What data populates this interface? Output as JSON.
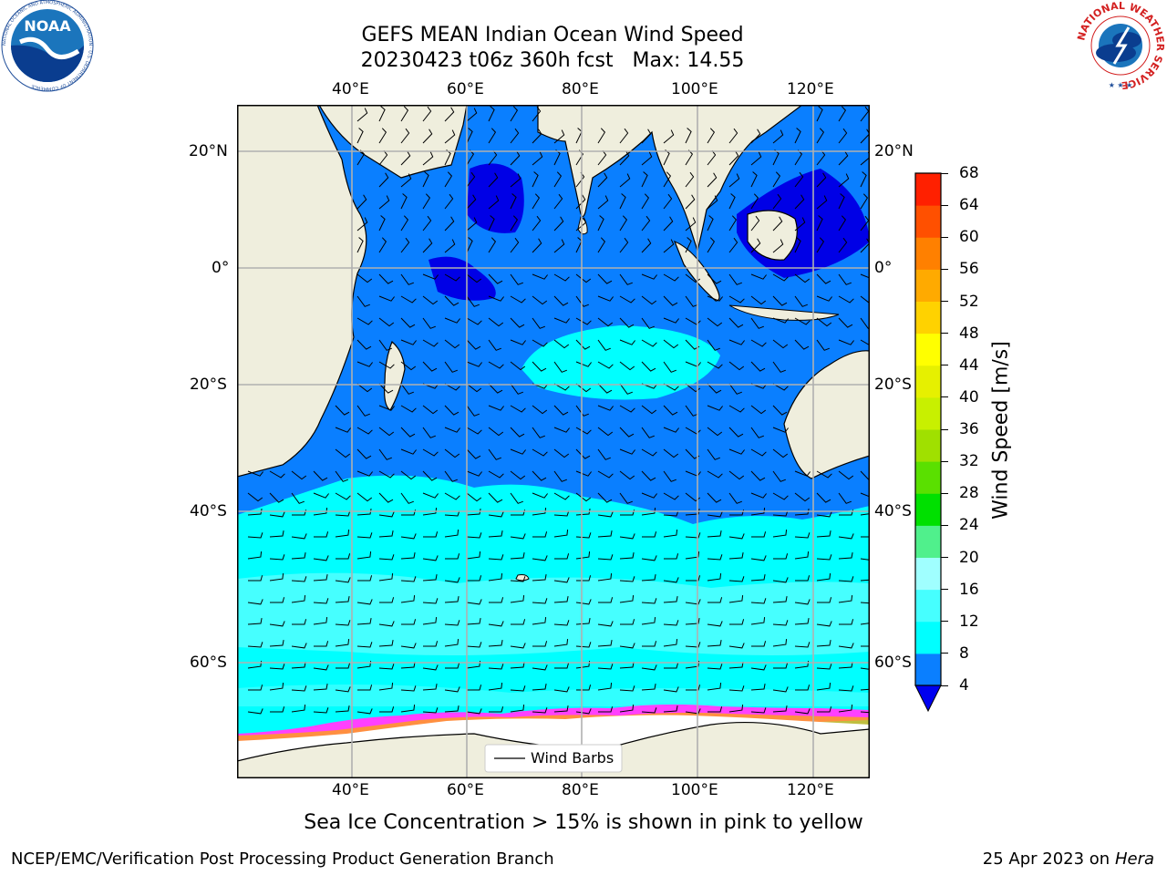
{
  "title": {
    "line1": "GEFS MEAN Indian Ocean Wind Speed",
    "line2": "20230423 t06z 360h fcst   Max: 14.55"
  },
  "logos": {
    "noaa_text": "NOAA",
    "noaa_ring": "NATIONAL OCEANIC AND ATMOSPHERIC ADMINISTRATION · U.S. DEPARTMENT OF COMMERCE",
    "nws_ring": "NATIONAL WEATHER SERVICE"
  },
  "map": {
    "lon_ticks": [
      "40°E",
      "60°E",
      "80°E",
      "100°E",
      "120°E"
    ],
    "lat_ticks_left": [
      "20°N",
      "0°",
      "20°S",
      "40°S",
      "60°S"
    ],
    "lat_ticks_right": [
      "20°N",
      "0°",
      "20°S",
      "40°S",
      "60°S"
    ],
    "legend_label": "Wind Barbs",
    "colors": {
      "land": "#efeedd",
      "ice": "#ffffff",
      "grid": "#b0b0b0",
      "band_4_8": "#0a7fff",
      "band_below_4": "#0000e6",
      "band_8_12": "#00ffff",
      "band_12_16": "#46ffff"
    }
  },
  "colorbar": {
    "label": "Wind Speed [m/s]",
    "ticks": [
      "4",
      "8",
      "12",
      "16",
      "20",
      "24",
      "28",
      "32",
      "36",
      "40",
      "44",
      "48",
      "52",
      "56",
      "60",
      "64",
      "68"
    ],
    "colors": [
      "#0a7fff",
      "#00ffff",
      "#46ffff",
      "#a0ffff",
      "#50f08c",
      "#00e000",
      "#5ae000",
      "#a0e000",
      "#c8f000",
      "#e6f000",
      "#ffff00",
      "#ffd200",
      "#ffaa00",
      "#ff8000",
      "#ff5000",
      "#ff2000"
    ],
    "under_color": "#0000f0"
  },
  "caption": "Sea Ice Concentration > 15% is shown in pink to yellow",
  "footer": {
    "left": "NCEP/EMC/Verification Post Processing Product Generation Branch",
    "right_date": "25 Apr 2023 on ",
    "right_host": "Hera"
  }
}
